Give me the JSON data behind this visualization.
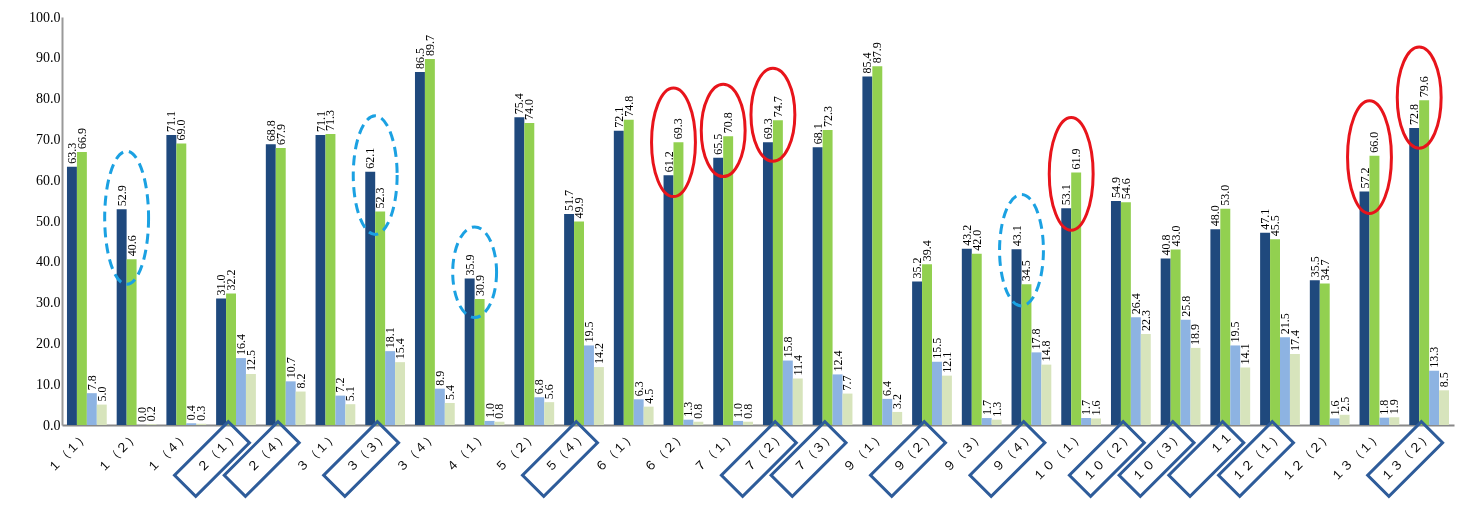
{
  "chart_data": {
    "type": "bar",
    "categories": [
      "１（１）",
      "１（２）",
      "１（４）",
      "２（１）",
      "２（４）",
      "３（１）",
      "３（３）",
      "３（４）",
      "４（１）",
      "５（２）",
      "５（４）",
      "６（１）",
      "６（２）",
      "７（１）",
      "７（２）",
      "７（３）",
      "９（１）",
      "９（２）",
      "９（３）",
      "９（４）",
      "１０（１）",
      "１０（２）",
      "１０（３）",
      "１１",
      "１２（１）",
      "１２（２）",
      "１３（１）",
      "１３（２）"
    ],
    "series": [
      {
        "color": "#1f497d",
        "values": [
          63.3,
          52.9,
          71.1,
          31.0,
          68.8,
          71.1,
          62.1,
          86.5,
          35.9,
          75.4,
          51.7,
          72.1,
          61.2,
          65.5,
          69.3,
          68.1,
          85.4,
          35.2,
          43.2,
          43.1,
          53.1,
          54.9,
          40.8,
          48.0,
          47.1,
          35.5,
          57.2,
          72.8
        ],
        "value_labels": [
          "63.3",
          "52.9",
          "71.1",
          "31.0",
          "68.8",
          "71.1",
          "62.1",
          "86.5",
          "35.9",
          "75.4",
          "51.7",
          "72.1",
          "61.2",
          "65.5",
          "69.3",
          "68.1",
          "85.4",
          "35.2",
          "43.2",
          "43.1",
          "53.1",
          "54.9",
          "40.8",
          "48.0",
          "47.1",
          "35.5",
          "57.2",
          "72.8"
        ]
      },
      {
        "color": "#92d050",
        "values": [
          66.9,
          40.6,
          69.0,
          32.2,
          67.9,
          71.3,
          52.3,
          89.7,
          30.9,
          74.0,
          49.9,
          74.8,
          69.3,
          70.8,
          74.7,
          72.3,
          87.9,
          39.4,
          42.0,
          34.5,
          61.9,
          54.6,
          43.0,
          53.0,
          45.5,
          34.7,
          66.0,
          79.6
        ],
        "value_labels": [
          "66.9",
          "40.6",
          "69.0",
          "32.2",
          "67.9",
          "71.3",
          "52.3",
          "89.7",
          "30.9",
          "74.0",
          "49.9",
          "74.8",
          "69.3",
          "70.8",
          "74.7",
          "72.3",
          "87.9",
          "39.4",
          "42.0",
          "34.5",
          "61.9",
          "54.6",
          "43.0",
          "53.0",
          "45.5",
          "34.7",
          "66.0",
          "79.6"
        ]
      },
      {
        "color": "#8db3e2",
        "values": [
          7.8,
          0.0,
          0.4,
          16.4,
          10.7,
          7.2,
          18.1,
          8.9,
          1.0,
          6.8,
          19.5,
          6.3,
          1.3,
          1.0,
          15.8,
          12.4,
          6.4,
          15.5,
          1.7,
          17.8,
          1.7,
          26.4,
          25.8,
          19.5,
          21.5,
          1.6,
          1.8,
          13.3
        ],
        "value_labels": [
          "7.8",
          "0.0",
          "0.4",
          "16.4",
          "10.7",
          "7.2",
          "18.1",
          "8.9",
          "1.0",
          "6.8",
          "19.5",
          "6.3",
          "1.3",
          "1.0",
          "15.8",
          "12.4",
          "6.4",
          "15.5",
          "1.7",
          "17.8",
          "1.7",
          "26.4",
          "25.8",
          "19.5",
          "21.5",
          "1.6",
          "1.8",
          "13.3"
        ]
      },
      {
        "color": "#d7e4bc",
        "values": [
          5.0,
          0.2,
          0.3,
          12.5,
          8.2,
          5.1,
          15.4,
          5.4,
          0.8,
          5.6,
          14.2,
          4.5,
          0.8,
          0.8,
          11.4,
          7.7,
          3.2,
          12.1,
          1.3,
          14.8,
          1.6,
          22.3,
          18.9,
          14.1,
          17.4,
          2.5,
          1.9,
          8.5
        ],
        "value_labels": [
          "5.0",
          "0.2",
          "0.3",
          "12.5",
          "8.2",
          "5.1",
          "15.4",
          "5.4",
          "0.8",
          "5.6",
          "14.2",
          "4.5",
          "0.8",
          "0.8",
          "11.4",
          "7.7",
          "3.2",
          "12.1",
          "1.3",
          "14.8",
          "1.6",
          "22.3",
          "18.9",
          "14.1",
          "17.4",
          "2.5",
          "1.9",
          "8.5"
        ]
      }
    ],
    "ylim": [
      0,
      100
    ],
    "yticks": [
      {
        "value": 0,
        "label": "0.0"
      },
      {
        "value": 10,
        "label": "10.0"
      },
      {
        "value": 20,
        "label": "20.0"
      },
      {
        "value": 30,
        "label": "30.0"
      },
      {
        "value": 40,
        "label": "40.0"
      },
      {
        "value": 50,
        "label": "50.0"
      },
      {
        "value": 60,
        "label": "60.0"
      },
      {
        "value": 70,
        "label": "70.0"
      },
      {
        "value": 80,
        "label": "80.0"
      },
      {
        "value": 90,
        "label": "90.0"
      },
      {
        "value": 100,
        "label": "100.0"
      }
    ],
    "grid": false
  }
}
